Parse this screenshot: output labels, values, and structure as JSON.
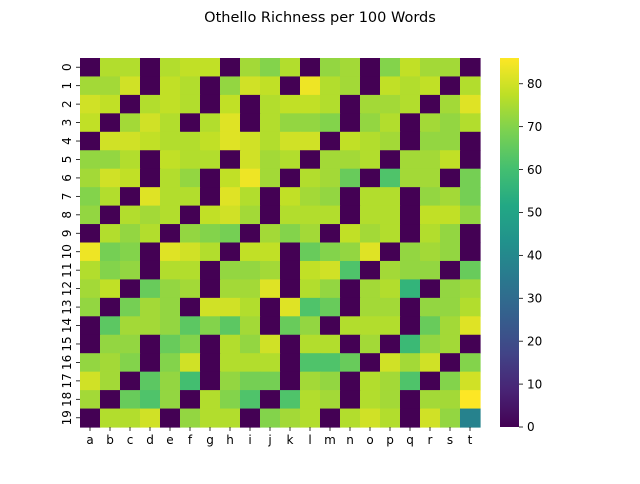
{
  "chart_data": {
    "type": "heatmap",
    "title": "Othello Richness per 100 Words",
    "xlabel": "",
    "ylabel": "",
    "x_categories": [
      "a",
      "b",
      "c",
      "d",
      "e",
      "f",
      "g",
      "h",
      "i",
      "j",
      "k",
      "l",
      "m",
      "n",
      "o",
      "p",
      "q",
      "r",
      "s",
      "t"
    ],
    "y_categories": [
      "0",
      "1",
      "2",
      "3",
      "4",
      "5",
      "6",
      "7",
      "8",
      "9",
      "10",
      "11",
      "12",
      "13",
      "14",
      "15",
      "16",
      "17",
      "18",
      "19"
    ],
    "colormap": "viridis",
    "colorbar": {
      "min": 0,
      "max": 86,
      "ticks": [
        0,
        10,
        20,
        30,
        40,
        50,
        60,
        70,
        80
      ]
    },
    "values": [
      [
        0,
        76,
        76,
        0,
        76,
        78,
        78,
        0,
        74,
        70,
        76,
        0,
        72,
        74,
        0,
        70,
        78,
        74,
        74,
        0
      ],
      [
        74,
        74,
        80,
        0,
        78,
        76,
        0,
        72,
        80,
        78,
        0,
        84,
        76,
        74,
        0,
        78,
        76,
        78,
        0,
        76
      ],
      [
        80,
        78,
        0,
        76,
        78,
        76,
        0,
        78,
        0,
        76,
        78,
        78,
        76,
        0,
        74,
        74,
        76,
        0,
        74,
        82
      ],
      [
        78,
        0,
        74,
        80,
        76,
        0,
        76,
        82,
        0,
        76,
        72,
        72,
        70,
        0,
        72,
        76,
        0,
        74,
        72,
        76
      ],
      [
        0,
        80,
        80,
        78,
        76,
        76,
        78,
        82,
        80,
        76,
        80,
        80,
        0,
        78,
        76,
        74,
        0,
        72,
        72,
        0
      ],
      [
        72,
        72,
        76,
        0,
        78,
        76,
        76,
        0,
        80,
        74,
        76,
        0,
        74,
        74,
        76,
        0,
        74,
        74,
        78,
        0
      ],
      [
        74,
        80,
        78,
        0,
        76,
        72,
        0,
        78,
        84,
        74,
        0,
        76,
        74,
        66,
        0,
        62,
        74,
        74,
        0,
        68
      ],
      [
        70,
        76,
        0,
        82,
        76,
        76,
        0,
        82,
        76,
        0,
        78,
        74,
        72,
        0,
        76,
        76,
        0,
        72,
        74,
        68
      ],
      [
        72,
        0,
        76,
        74,
        76,
        0,
        78,
        80,
        74,
        0,
        76,
        76,
        76,
        0,
        76,
        76,
        0,
        78,
        78,
        72
      ],
      [
        0,
        76,
        72,
        76,
        0,
        72,
        70,
        68,
        0,
        74,
        70,
        74,
        0,
        78,
        74,
        76,
        0,
        76,
        72,
        0
      ],
      [
        84,
        68,
        70,
        0,
        82,
        80,
        76,
        0,
        78,
        78,
        0,
        66,
        70,
        72,
        82,
        0,
        72,
        74,
        72,
        0
      ],
      [
        76,
        70,
        72,
        0,
        76,
        76,
        0,
        72,
        72,
        74,
        0,
        78,
        80,
        62,
        0,
        74,
        72,
        72,
        0,
        66
      ],
      [
        74,
        78,
        0,
        66,
        72,
        74,
        0,
        74,
        74,
        82,
        0,
        76,
        72,
        0,
        74,
        76,
        56,
        0,
        72,
        74
      ],
      [
        72,
        0,
        68,
        74,
        72,
        0,
        80,
        80,
        76,
        0,
        82,
        62,
        66,
        0,
        74,
        74,
        0,
        72,
        72,
        76
      ],
      [
        0,
        64,
        74,
        74,
        72,
        64,
        70,
        64,
        74,
        0,
        66,
        72,
        0,
        76,
        76,
        76,
        0,
        66,
        74,
        82
      ],
      [
        0,
        72,
        72,
        0,
        66,
        70,
        0,
        76,
        72,
        80,
        0,
        76,
        76,
        0,
        74,
        0,
        58,
        72,
        74,
        0
      ],
      [
        72,
        74,
        70,
        0,
        70,
        80,
        0,
        76,
        76,
        76,
        0,
        62,
        62,
        66,
        0,
        80,
        74,
        80,
        0,
        70
      ],
      [
        80,
        74,
        0,
        64,
        72,
        60,
        0,
        72,
        68,
        68,
        0,
        74,
        72,
        0,
        76,
        74,
        62,
        0,
        70,
        80
      ],
      [
        74,
        0,
        66,
        62,
        72,
        0,
        76,
        70,
        62,
        0,
        62,
        76,
        74,
        0,
        76,
        74,
        0,
        74,
        74,
        86
      ],
      [
        0,
        76,
        76,
        80,
        0,
        72,
        76,
        76,
        0,
        70,
        74,
        76,
        0,
        76,
        80,
        76,
        0,
        80,
        72,
        38
      ]
    ]
  }
}
